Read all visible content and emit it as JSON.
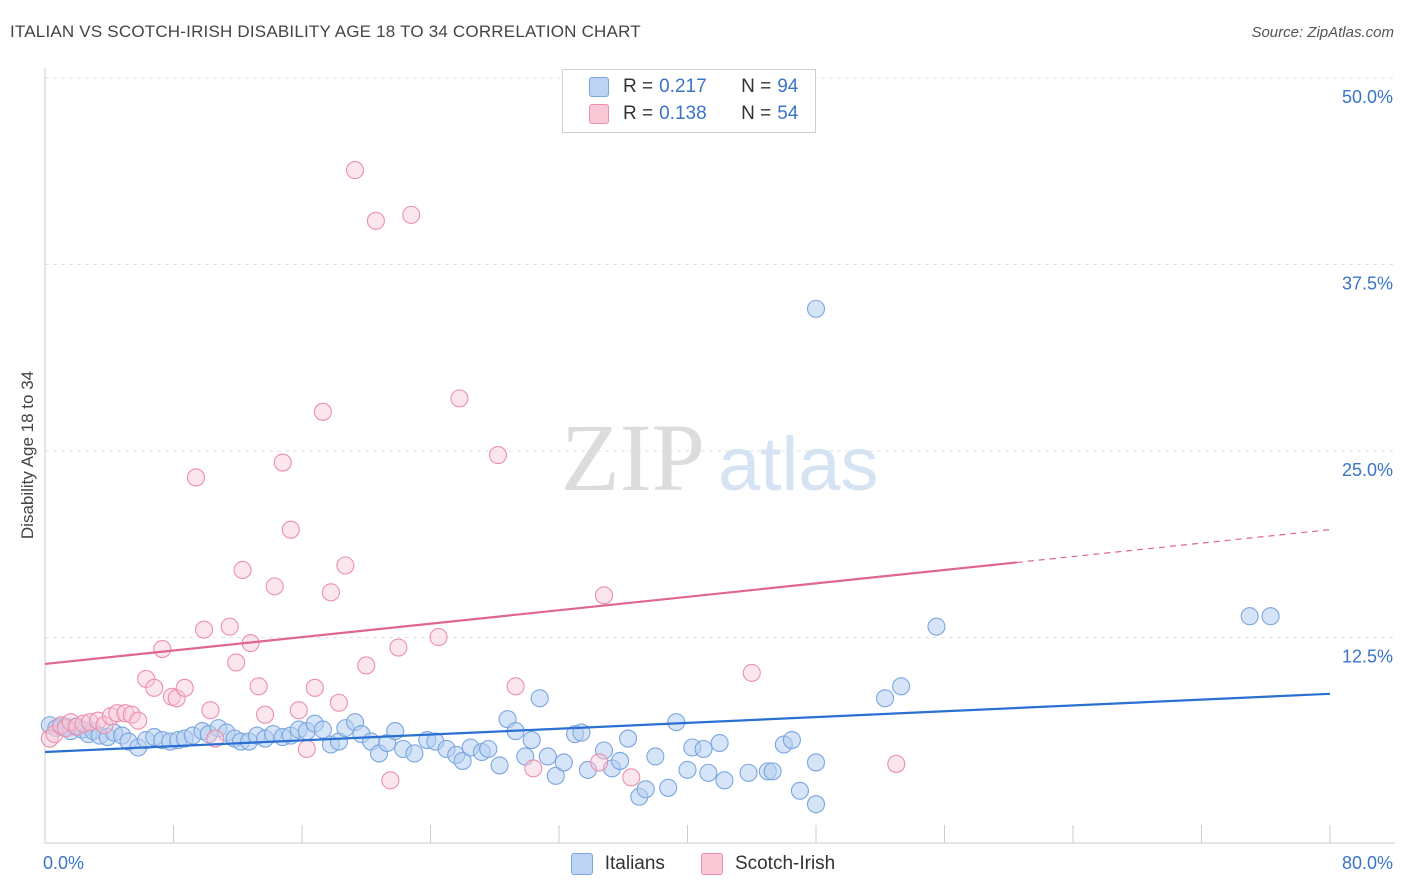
{
  "title": "ITALIAN VS SCOTCH-IRISH DISABILITY AGE 18 TO 34 CORRELATION CHART",
  "source": "Source: ZipAtlas.com",
  "watermark": {
    "zip": "ZIP",
    "atlas": "atlas"
  },
  "legend": {
    "r_label": "R =",
    "n_label": "N =",
    "series": [
      {
        "name": "Italians",
        "r": "0.217",
        "n": "94",
        "color": "#7aa6e0"
      },
      {
        "name": "Scotch-Irish",
        "r": "0.138",
        "n": "54",
        "color": "#eb8fad"
      }
    ]
  },
  "chart_data": {
    "type": "scatter",
    "title": "ITALIAN VS SCOTCH-IRISH DISABILITY AGE 18 TO 34 CORRELATION CHART",
    "xlabel": "",
    "ylabel": "Disability Age 18 to 34",
    "xlim": [
      0,
      80
    ],
    "ylim": [
      0,
      50
    ],
    "x_tick_labels": [
      "0.0%",
      "80.0%"
    ],
    "y_tick_labels": [
      "12.5%",
      "25.0%",
      "37.5%",
      "50.0%"
    ],
    "y_ticks": [
      12.5,
      25,
      37.5,
      50
    ],
    "series": [
      {
        "name": "Italians",
        "color": "#7aa6e0",
        "trend": {
          "x0": 0,
          "y0": 6.1,
          "x1": 80,
          "y1": 10.0
        },
        "points": [
          [
            0.3,
            7.9
          ],
          [
            0.7,
            7.7
          ],
          [
            1.0,
            7.8
          ],
          [
            1.3,
            7.8
          ],
          [
            1.6,
            7.5
          ],
          [
            1.9,
            7.8
          ],
          [
            2.3,
            7.6
          ],
          [
            2.7,
            7.3
          ],
          [
            3.0,
            7.5
          ],
          [
            3.4,
            7.2
          ],
          [
            3.9,
            7.1
          ],
          [
            4.3,
            7.4
          ],
          [
            4.8,
            7.2
          ],
          [
            5.2,
            6.8
          ],
          [
            5.8,
            6.4
          ],
          [
            6.3,
            6.9
          ],
          [
            6.8,
            7.1
          ],
          [
            7.3,
            6.9
          ],
          [
            7.8,
            6.8
          ],
          [
            8.3,
            6.9
          ],
          [
            8.7,
            7.0
          ],
          [
            9.2,
            7.2
          ],
          [
            9.8,
            7.5
          ],
          [
            10.2,
            7.3
          ],
          [
            10.8,
            7.7
          ],
          [
            11.3,
            7.4
          ],
          [
            11.8,
            7.0
          ],
          [
            12.2,
            6.8
          ],
          [
            12.7,
            6.8
          ],
          [
            13.2,
            7.2
          ],
          [
            13.7,
            7.0
          ],
          [
            14.2,
            7.3
          ],
          [
            14.8,
            7.1
          ],
          [
            15.3,
            7.2
          ],
          [
            15.8,
            7.6
          ],
          [
            16.3,
            7.5
          ],
          [
            16.8,
            8.0
          ],
          [
            17.3,
            7.6
          ],
          [
            17.8,
            6.6
          ],
          [
            18.3,
            6.8
          ],
          [
            18.7,
            7.7
          ],
          [
            19.3,
            8.1
          ],
          [
            19.7,
            7.3
          ],
          [
            20.3,
            6.8
          ],
          [
            20.8,
            6.0
          ],
          [
            21.3,
            6.7
          ],
          [
            21.8,
            7.5
          ],
          [
            22.3,
            6.3
          ],
          [
            23.0,
            6.0
          ],
          [
            23.8,
            6.9
          ],
          [
            24.3,
            6.8
          ],
          [
            25.0,
            6.3
          ],
          [
            25.6,
            5.9
          ],
          [
            26.0,
            5.5
          ],
          [
            26.5,
            6.4
          ],
          [
            27.2,
            6.1
          ],
          [
            27.6,
            6.3
          ],
          [
            28.3,
            5.2
          ],
          [
            28.8,
            8.3
          ],
          [
            29.3,
            7.5
          ],
          [
            29.9,
            5.8
          ],
          [
            30.3,
            6.9
          ],
          [
            30.8,
            9.7
          ],
          [
            31.3,
            5.8
          ],
          [
            31.8,
            4.5
          ],
          [
            32.3,
            5.4
          ],
          [
            33.0,
            7.3
          ],
          [
            33.4,
            7.4
          ],
          [
            33.8,
            4.9
          ],
          [
            34.8,
            6.2
          ],
          [
            35.3,
            5.0
          ],
          [
            35.8,
            5.5
          ],
          [
            36.3,
            7.0
          ],
          [
            37.0,
            3.1
          ],
          [
            37.4,
            3.6
          ],
          [
            38.0,
            5.8
          ],
          [
            38.8,
            3.7
          ],
          [
            39.3,
            8.1
          ],
          [
            40.0,
            4.9
          ],
          [
            40.3,
            6.4
          ],
          [
            41.0,
            6.3
          ],
          [
            41.3,
            4.7
          ],
          [
            42.0,
            6.7
          ],
          [
            42.3,
            4.2
          ],
          [
            43.8,
            4.7
          ],
          [
            45.0,
            4.8
          ],
          [
            45.3,
            4.8
          ],
          [
            46.0,
            6.6
          ],
          [
            46.5,
            6.9
          ],
          [
            47.0,
            3.5
          ],
          [
            48.0,
            2.6
          ],
          [
            48.0,
            5.4
          ],
          [
            48.0,
            35.8
          ],
          [
            52.3,
            9.7
          ],
          [
            53.3,
            10.5
          ],
          [
            55.5,
            14.5
          ],
          [
            75.0,
            15.2
          ],
          [
            76.3,
            15.2
          ]
        ]
      },
      {
        "name": "Scotch-Irish",
        "color": "#eb8fad",
        "trend": {
          "x0": 0,
          "y0": 12.0,
          "x1": 80,
          "y1": 21.0,
          "solid_until_x": 60.5
        },
        "points": [
          [
            0.3,
            7.0
          ],
          [
            0.6,
            7.3
          ],
          [
            1.0,
            7.9
          ],
          [
            1.3,
            7.7
          ],
          [
            1.6,
            8.1
          ],
          [
            2.0,
            7.8
          ],
          [
            2.4,
            8.0
          ],
          [
            2.8,
            8.1
          ],
          [
            3.3,
            8.2
          ],
          [
            3.7,
            7.9
          ],
          [
            4.1,
            8.5
          ],
          [
            4.5,
            8.7
          ],
          [
            5.0,
            8.7
          ],
          [
            5.4,
            8.6
          ],
          [
            5.8,
            8.2
          ],
          [
            6.3,
            11.0
          ],
          [
            6.8,
            10.4
          ],
          [
            7.3,
            13.0
          ],
          [
            7.9,
            9.8
          ],
          [
            8.2,
            9.7
          ],
          [
            8.7,
            10.4
          ],
          [
            9.4,
            24.5
          ],
          [
            9.9,
            14.3
          ],
          [
            10.3,
            8.9
          ],
          [
            10.6,
            7.0
          ],
          [
            11.5,
            14.5
          ],
          [
            11.9,
            12.1
          ],
          [
            12.3,
            18.3
          ],
          [
            12.8,
            13.4
          ],
          [
            13.3,
            10.5
          ],
          [
            13.7,
            8.6
          ],
          [
            14.3,
            17.2
          ],
          [
            14.8,
            25.5
          ],
          [
            15.3,
            21.0
          ],
          [
            15.8,
            8.9
          ],
          [
            16.3,
            6.3
          ],
          [
            16.8,
            10.4
          ],
          [
            17.3,
            28.9
          ],
          [
            17.8,
            16.8
          ],
          [
            18.3,
            9.4
          ],
          [
            18.7,
            18.6
          ],
          [
            19.3,
            45.1
          ],
          [
            20.0,
            11.9
          ],
          [
            20.6,
            41.7
          ],
          [
            21.5,
            4.2
          ],
          [
            22.0,
            13.1
          ],
          [
            22.8,
            42.1
          ],
          [
            24.5,
            13.8
          ],
          [
            25.8,
            29.8
          ],
          [
            28.2,
            26.0
          ],
          [
            29.3,
            10.5
          ],
          [
            30.4,
            5.0
          ],
          [
            34.5,
            5.4
          ],
          [
            34.8,
            16.6
          ],
          [
            36.5,
            4.4
          ],
          [
            44.0,
            11.4
          ],
          [
            53.0,
            5.3
          ]
        ]
      }
    ]
  }
}
